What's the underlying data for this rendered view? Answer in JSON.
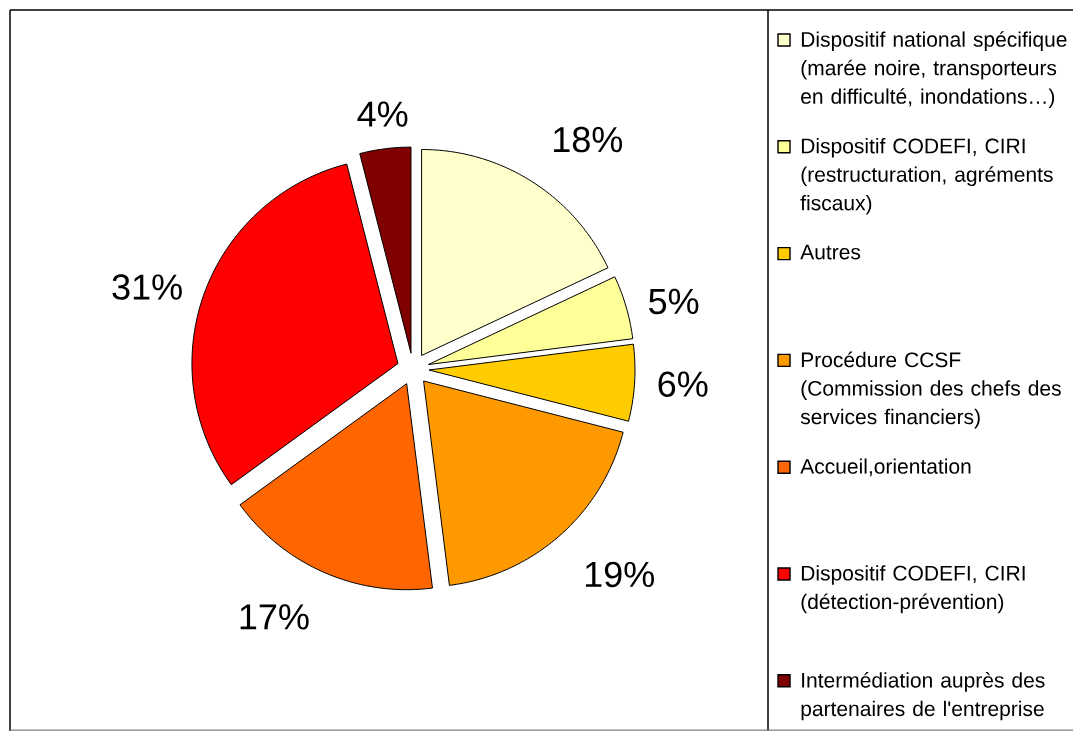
{
  "chart_data": {
    "type": "pie",
    "categories": [
      "Dispositif national spécifique (marée noire, transporteurs en difficulté, inondations…)",
      "Dispositif CODEFI, CIRI (restructuration, agréments fiscaux)",
      "Autres",
      "Procédure CCSF (Commission des chefs des services financiers)",
      "Accueil,orientation",
      "Dispositif CODEFI, CIRI (détection-prévention)",
      "Intermédiation auprès des partenaires de l'entreprise"
    ],
    "values": [
      18,
      5,
      6,
      19,
      17,
      31,
      4
    ],
    "colors": [
      "#ffffcc",
      "#ffff99",
      "#ffcc00",
      "#ff9900",
      "#ff6600",
      "#ff0000",
      "#800000"
    ],
    "value_labels": [
      "18%",
      "5%",
      "6%",
      "19%",
      "17%",
      "31%",
      "4%"
    ],
    "legend": "right"
  }
}
